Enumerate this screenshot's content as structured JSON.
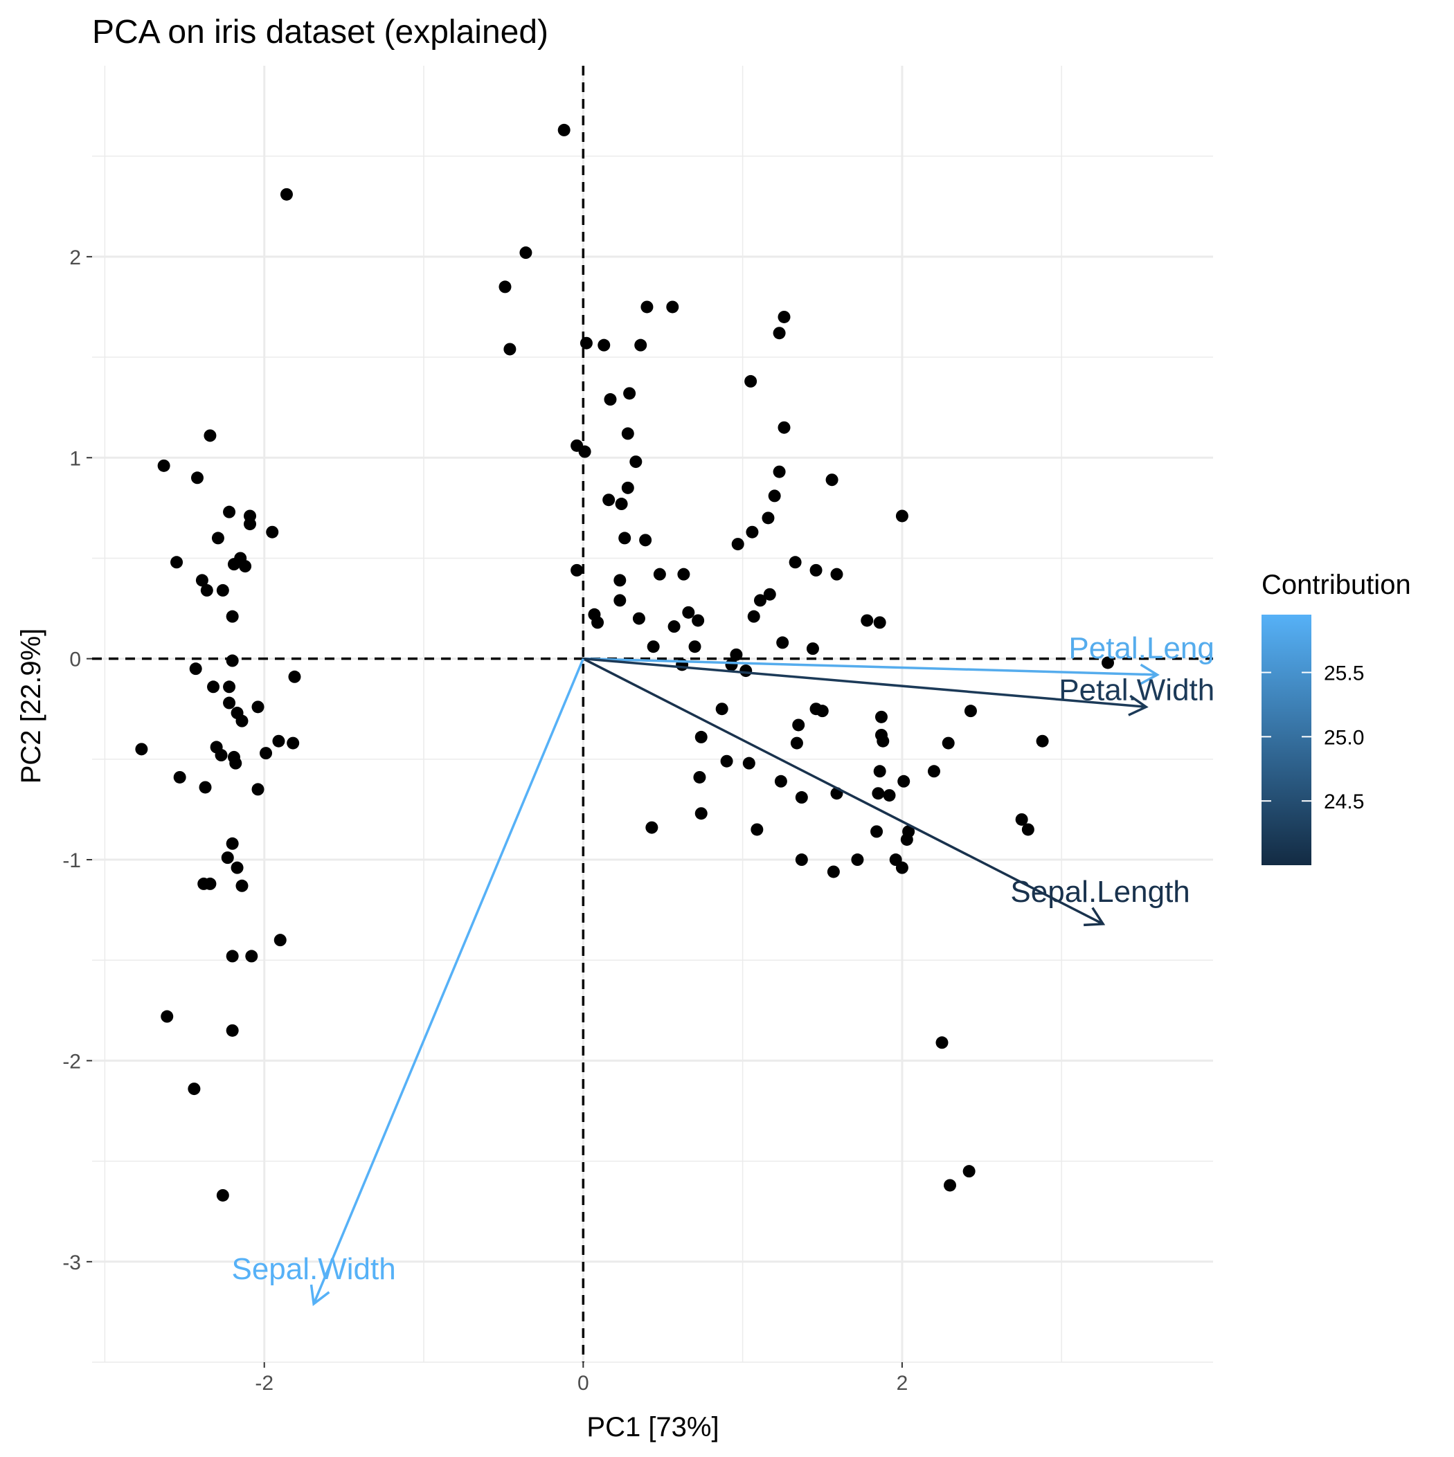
{
  "chart_data": {
    "type": "scatter",
    "title": "PCA on iris dataset (explained)",
    "xlabel": "PC1 [73%]",
    "ylabel": "PC2 [22.9%]",
    "xlim": [
      -3.08,
      3.95
    ],
    "ylim": [
      -3.5,
      2.95
    ],
    "x_ticks": [
      -2,
      0,
      2
    ],
    "x_tick_labels": [
      "-2",
      "0",
      "2"
    ],
    "y_ticks": [
      2,
      1,
      0,
      -1,
      -2,
      -3
    ],
    "y_tick_labels": [
      "2",
      "1",
      "0",
      "-1",
      "-2",
      "-3"
    ],
    "grid": true,
    "reference_lines": {
      "x": 0,
      "y": 0,
      "style": "dashed"
    },
    "points": [
      [
        -0.12,
        2.63
      ],
      [
        -1.86,
        2.31
      ],
      [
        -0.36,
        2.02
      ],
      [
        -0.49,
        1.85
      ],
      [
        -0.46,
        1.54
      ],
      [
        0.4,
        1.75
      ],
      [
        0.56,
        1.75
      ],
      [
        1.23,
        1.62
      ],
      [
        1.26,
        1.7
      ],
      [
        0.02,
        1.57
      ],
      [
        0.13,
        1.56
      ],
      [
        0.36,
        1.56
      ],
      [
        1.05,
        1.38
      ],
      [
        0.29,
        1.32
      ],
      [
        0.17,
        1.29
      ],
      [
        1.26,
        1.15
      ],
      [
        0.28,
        1.12
      ],
      [
        -2.34,
        1.11
      ],
      [
        -0.04,
        1.06
      ],
      [
        0.01,
        1.03
      ],
      [
        0.33,
        0.98
      ],
      [
        -2.63,
        0.96
      ],
      [
        1.23,
        0.93
      ],
      [
        -2.42,
        0.9
      ],
      [
        1.56,
        0.89
      ],
      [
        0.28,
        0.85
      ],
      [
        1.2,
        0.81
      ],
      [
        0.16,
        0.79
      ],
      [
        0.24,
        0.77
      ],
      [
        -2.22,
        0.73
      ],
      [
        -2.09,
        0.71
      ],
      [
        2.0,
        0.71
      ],
      [
        1.16,
        0.7
      ],
      [
        -2.09,
        0.67
      ],
      [
        1.06,
        0.63
      ],
      [
        -1.95,
        0.63
      ],
      [
        -2.29,
        0.6
      ],
      [
        0.26,
        0.6
      ],
      [
        0.39,
        0.59
      ],
      [
        0.97,
        0.57
      ],
      [
        -2.15,
        0.5
      ],
      [
        1.33,
        0.48
      ],
      [
        -2.55,
        0.48
      ],
      [
        -2.19,
        0.47
      ],
      [
        -2.12,
        0.46
      ],
      [
        -0.04,
        0.44
      ],
      [
        1.46,
        0.44
      ],
      [
        0.48,
        0.42
      ],
      [
        0.63,
        0.42
      ],
      [
        1.59,
        0.42
      ],
      [
        -2.39,
        0.39
      ],
      [
        0.23,
        0.39
      ],
      [
        -2.36,
        0.34
      ],
      [
        -2.26,
        0.34
      ],
      [
        1.17,
        0.32
      ],
      [
        1.11,
        0.29
      ],
      [
        0.23,
        0.29
      ],
      [
        0.66,
        0.23
      ],
      [
        0.07,
        0.22
      ],
      [
        -2.2,
        0.21
      ],
      [
        1.07,
        0.21
      ],
      [
        0.35,
        0.2
      ],
      [
        0.09,
        0.18
      ],
      [
        1.78,
        0.19
      ],
      [
        0.72,
        0.19
      ],
      [
        1.86,
        0.18
      ],
      [
        0.57,
        0.16
      ],
      [
        1.25,
        0.08
      ],
      [
        0.7,
        0.06
      ],
      [
        0.44,
        0.06
      ],
      [
        1.44,
        0.05
      ],
      [
        0.96,
        0.02
      ],
      [
        -2.2,
        -0.01
      ],
      [
        3.29,
        -0.02
      ],
      [
        0.93,
        -0.03
      ],
      [
        0.62,
        -0.03
      ],
      [
        -2.43,
        -0.05
      ],
      [
        1.02,
        -0.06
      ],
      [
        -1.81,
        -0.09
      ],
      [
        -2.32,
        -0.14
      ],
      [
        -2.22,
        -0.14
      ],
      [
        -2.22,
        -0.22
      ],
      [
        -2.04,
        -0.24
      ],
      [
        0.87,
        -0.25
      ],
      [
        1.46,
        -0.25
      ],
      [
        2.43,
        -0.26
      ],
      [
        1.5,
        -0.26
      ],
      [
        -2.17,
        -0.27
      ],
      [
        -2.14,
        -0.31
      ],
      [
        1.87,
        -0.29
      ],
      [
        1.35,
        -0.33
      ],
      [
        1.87,
        -0.38
      ],
      [
        0.74,
        -0.39
      ],
      [
        1.88,
        -0.41
      ],
      [
        -1.91,
        -0.41
      ],
      [
        -1.82,
        -0.42
      ],
      [
        1.34,
        -0.42
      ],
      [
        2.29,
        -0.42
      ],
      [
        2.88,
        -0.41
      ],
      [
        -2.77,
        -0.45
      ],
      [
        -2.3,
        -0.44
      ],
      [
        -1.99,
        -0.47
      ],
      [
        -2.27,
        -0.48
      ],
      [
        -2.19,
        -0.49
      ],
      [
        0.9,
        -0.51
      ],
      [
        -2.18,
        -0.52
      ],
      [
        1.04,
        -0.52
      ],
      [
        1.86,
        -0.56
      ],
      [
        2.2,
        -0.56
      ],
      [
        0.73,
        -0.59
      ],
      [
        -2.53,
        -0.59
      ],
      [
        1.24,
        -0.61
      ],
      [
        2.01,
        -0.61
      ],
      [
        -2.37,
        -0.64
      ],
      [
        -2.04,
        -0.65
      ],
      [
        1.59,
        -0.67
      ],
      [
        1.85,
        -0.67
      ],
      [
        1.37,
        -0.69
      ],
      [
        1.92,
        -0.68
      ],
      [
        0.74,
        -0.77
      ],
      [
        2.75,
        -0.8
      ],
      [
        2.79,
        -0.85
      ],
      [
        0.43,
        -0.84
      ],
      [
        1.09,
        -0.85
      ],
      [
        1.84,
        -0.86
      ],
      [
        2.04,
        -0.86
      ],
      [
        -2.2,
        -0.92
      ],
      [
        2.03,
        -0.9
      ],
      [
        -2.23,
        -0.99
      ],
      [
        1.37,
        -1.0
      ],
      [
        1.72,
        -1.0
      ],
      [
        1.96,
        -1.0
      ],
      [
        2.0,
        -1.04
      ],
      [
        -2.17,
        -1.04
      ],
      [
        1.57,
        -1.06
      ],
      [
        -2.38,
        -1.12
      ],
      [
        -2.34,
        -1.12
      ],
      [
        -2.14,
        -1.13
      ],
      [
        -1.9,
        -1.4
      ],
      [
        -2.2,
        -1.48
      ],
      [
        -2.08,
        -1.48
      ],
      [
        -2.61,
        -1.78
      ],
      [
        -2.2,
        -1.85
      ],
      [
        2.25,
        -1.91
      ],
      [
        -2.44,
        -2.14
      ],
      [
        2.42,
        -2.55
      ],
      [
        2.3,
        -2.62
      ],
      [
        -2.26,
        -2.67
      ]
    ],
    "arrows": [
      {
        "label": "Petal.Length",
        "x": 3.6,
        "y": -0.08,
        "contribution": 25.9,
        "color": "#55aced"
      },
      {
        "label": "Petal.Width",
        "x": 3.53,
        "y": -0.24,
        "contribution": 24.3,
        "color": "#1c3a58"
      },
      {
        "label": "Sepal.Length",
        "x": 3.26,
        "y": -1.32,
        "contribution": 24.1,
        "color": "#19324d"
      },
      {
        "label": "Sepal.Width",
        "x": -1.69,
        "y": -3.21,
        "contribution": 25.9,
        "color": "#56b1f7"
      }
    ],
    "legend": {
      "title": "Contribution",
      "position": "right",
      "range": [
        24.0,
        25.95
      ],
      "ticks": [
        25.5,
        25.0,
        24.5
      ],
      "tick_labels": [
        "25.5",
        "25.0",
        "24.5"
      ],
      "color_low": "#132b43",
      "color_high": "#56b1f7"
    }
  }
}
